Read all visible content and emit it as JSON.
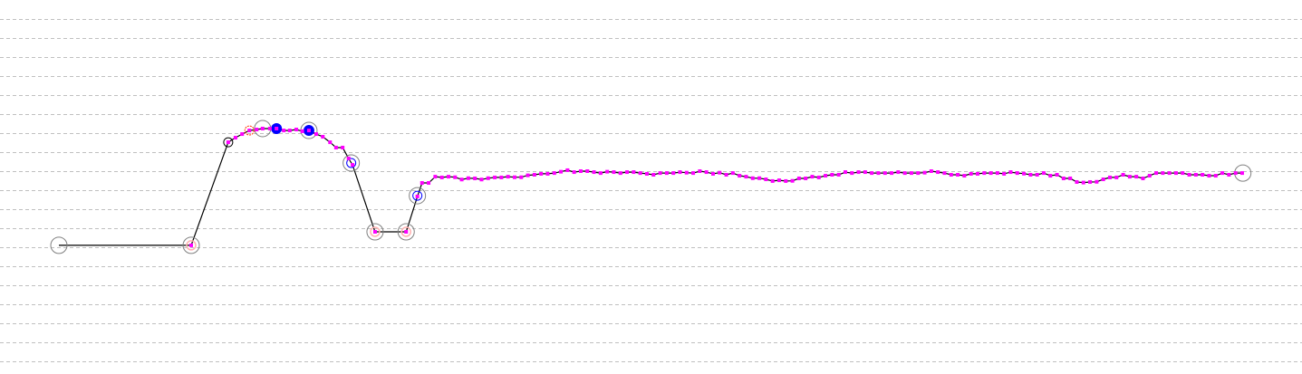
{
  "chart_data": {
    "type": "line",
    "title": "",
    "xlabel": "",
    "ylabel": "",
    "grid": {
      "horizontal": true,
      "vertical": false,
      "style": "dashed",
      "color": "#c0c0c0",
      "levels": [
        0,
        1,
        2,
        3,
        4,
        5,
        6,
        7,
        8,
        9,
        10,
        11,
        12,
        13,
        14,
        15,
        16,
        17,
        18
      ]
    },
    "xlim": [
      -8.9,
      188
    ],
    "ylim": [
      -0.67,
      19
    ],
    "colors": {
      "line": "#000000",
      "point": "#ff00ff",
      "ring": "#808080",
      "highlight": "#0000ff",
      "alert": "#ff3300",
      "faint": "#ffb0b0"
    },
    "series": [
      {
        "points": [
          [
            0,
            6.1
          ],
          [
            20.0,
            6.1
          ],
          [
            25.6,
            11.52
          ],
          [
            26.7,
            11.76
          ],
          [
            27.7,
            11.95
          ],
          [
            28.8,
            12.14
          ],
          [
            29.9,
            12.19
          ],
          [
            30.8,
            12.24
          ],
          [
            31.9,
            12.24
          ],
          [
            32.9,
            12.24
          ],
          [
            34.0,
            12.14
          ],
          [
            34.9,
            12.14
          ],
          [
            35.9,
            12.19
          ],
          [
            36.8,
            12.1
          ],
          [
            37.8,
            12.14
          ],
          [
            38.9,
            11.95
          ],
          [
            39.9,
            11.81
          ],
          [
            41.0,
            11.52
          ],
          [
            41.9,
            11.24
          ],
          [
            42.9,
            11.24
          ],
          [
            43.8,
            10.67
          ],
          [
            44.4,
            10.33
          ],
          [
            47.8,
            6.81
          ],
          [
            52.5,
            6.81
          ],
          [
            54.2,
            8.67
          ],
          [
            54.9,
            9.38
          ],
          [
            55.9,
            9.38
          ]
        ],
        "tail_x_start": 56.9,
        "tail_x_step": 1,
        "tail_y": [
          9.71,
          9.67,
          9.71,
          9.68,
          9.56,
          9.63,
          9.62,
          9.56,
          9.63,
          9.67,
          9.67,
          9.71,
          9.68,
          9.68,
          9.78,
          9.81,
          9.86,
          9.86,
          9.9,
          9.97,
          10.05,
          9.95,
          10.0,
          10.0,
          9.95,
          9.9,
          9.97,
          9.95,
          9.9,
          9.95,
          9.95,
          9.9,
          9.86,
          9.81,
          9.9,
          9.9,
          9.9,
          9.95,
          9.92,
          9.9,
          10.0,
          9.95,
          9.86,
          9.92,
          9.81,
          9.9,
          9.76,
          9.71,
          9.63,
          9.63,
          9.57,
          9.48,
          9.52,
          9.48,
          9.49,
          9.62,
          9.62,
          9.71,
          9.67,
          9.76,
          9.81,
          9.81,
          9.95,
          9.9,
          9.95,
          9.95,
          9.9,
          9.9,
          9.9,
          9.9,
          9.95,
          9.9,
          9.9,
          9.9,
          9.92,
          10.0,
          9.95,
          9.9,
          9.81,
          9.81,
          9.76,
          9.86,
          9.86,
          9.9,
          9.9,
          9.9,
          9.86,
          9.95,
          9.9,
          9.87,
          9.81,
          9.81,
          9.9,
          9.76,
          9.81,
          9.62,
          9.62,
          9.43,
          9.4,
          9.43,
          9.44,
          9.57,
          9.67,
          9.67,
          9.81,
          9.71,
          9.71,
          9.62,
          9.76,
          9.9,
          9.9,
          9.9,
          9.9,
          9.9,
          9.81,
          9.81,
          9.81,
          9.76,
          9.76,
          9.9,
          9.81,
          9.9,
          9.9
        ]
      }
    ],
    "markers": [
      {
        "kind": "ring-gray",
        "x": 0,
        "y": 6.1
      },
      {
        "kind": "ring-pink",
        "x": 20.0,
        "y": 6.1
      },
      {
        "kind": "ring-gray",
        "x": 20.0,
        "y": 6.1
      },
      {
        "kind": "ring-black",
        "x": 25.6,
        "y": 11.52
      },
      {
        "kind": "ring-red-dashed",
        "x": 28.8,
        "y": 12.14
      },
      {
        "kind": "ring-gray",
        "x": 30.8,
        "y": 12.24
      },
      {
        "kind": "dot-blue",
        "x": 32.9,
        "y": 12.24
      },
      {
        "kind": "dot-blue",
        "x": 37.8,
        "y": 12.14
      },
      {
        "kind": "ring-gray",
        "x": 37.8,
        "y": 12.14
      },
      {
        "kind": "ring-blue",
        "x": 44.2,
        "y": 10.43
      },
      {
        "kind": "ring-gray",
        "x": 44.2,
        "y": 10.43
      },
      {
        "kind": "ring-pink",
        "x": 47.8,
        "y": 6.81
      },
      {
        "kind": "ring-gray",
        "x": 47.8,
        "y": 6.81
      },
      {
        "kind": "ring-pink",
        "x": 52.5,
        "y": 6.81
      },
      {
        "kind": "ring-gray",
        "x": 52.5,
        "y": 6.81
      },
      {
        "kind": "ring-blue",
        "x": 54.2,
        "y": 8.71
      },
      {
        "kind": "ring-gray",
        "x": 54.2,
        "y": 8.71
      },
      {
        "kind": "ring-gray",
        "x": 179.0,
        "y": 9.9
      }
    ]
  }
}
